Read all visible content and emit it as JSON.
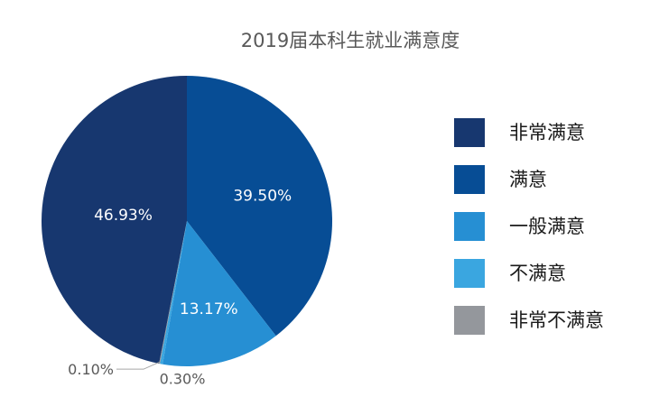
{
  "chart_data": {
    "type": "pie",
    "title": "2019届本科生就业满意度",
    "slices": [
      {
        "label": "非常满意",
        "value": 46.93,
        "display": "46.93%",
        "color": "#17376f"
      },
      {
        "label": "满意",
        "value": 39.5,
        "display": "39.50%",
        "color": "#074d95"
      },
      {
        "label": "一般满意",
        "value": 13.17,
        "display": "13.17%",
        "color": "#268fd3"
      },
      {
        "label": "不满意",
        "value": 0.3,
        "display": "0.30%",
        "color": "#3aa6e0"
      },
      {
        "label": "非常不满意",
        "value": 0.1,
        "display": "0.10%",
        "color": "#94979c"
      }
    ],
    "legend_position": "right"
  }
}
